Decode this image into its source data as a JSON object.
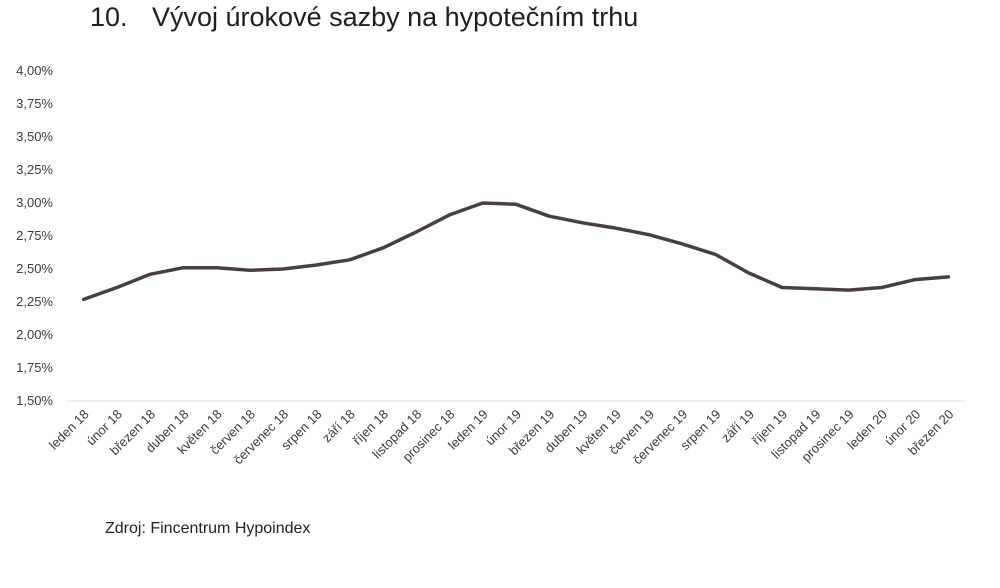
{
  "header": {
    "number": "10.",
    "title": "Vývoj úrokové sazby na hypotečním trhu"
  },
  "footer": {
    "source": "Zdroj: Fincentrum Hypoindex"
  },
  "colors": {
    "line": "#4a3f40",
    "axis": "#d9d9d9",
    "text": "#222222"
  },
  "chart_data": {
    "type": "line",
    "title": "",
    "xlabel": "",
    "ylabel": "",
    "ylim": [
      1.5,
      4.0
    ],
    "yticks": [
      "1,50%",
      "1,75%",
      "2,00%",
      "2,25%",
      "2,50%",
      "2,75%",
      "3,00%",
      "3,25%",
      "3,50%",
      "3,75%",
      "4,00%"
    ],
    "ytick_values": [
      1.5,
      1.75,
      2.0,
      2.25,
      2.5,
      2.75,
      3.0,
      3.25,
      3.5,
      3.75,
      4.0
    ],
    "grid": false,
    "legend": "none",
    "categories": [
      "leden 18",
      "únor 18",
      "březen 18",
      "duben 18",
      "květen 18",
      "červen 18",
      "červenec 18",
      "srpen 18",
      "září 18",
      "říjen 18",
      "listopad 18",
      "prosinec 18",
      "leden 19",
      "únor 19",
      "březen 19",
      "duben 19",
      "květen 19",
      "červen 19",
      "červenec 19",
      "srpen 19",
      "září 19",
      "říjen 19",
      "listopad 19",
      "prosinec 19",
      "leden 20",
      "únor 20",
      "březen 20"
    ],
    "series": [
      {
        "values": [
          2.27,
          2.36,
          2.46,
          2.51,
          2.51,
          2.49,
          2.5,
          2.53,
          2.57,
          2.66,
          2.78,
          2.91,
          3.0,
          2.99,
          2.9,
          2.85,
          2.81,
          2.76,
          2.69,
          2.61,
          2.47,
          2.36,
          2.35,
          2.34,
          2.36,
          2.42,
          2.44
        ]
      }
    ]
  }
}
